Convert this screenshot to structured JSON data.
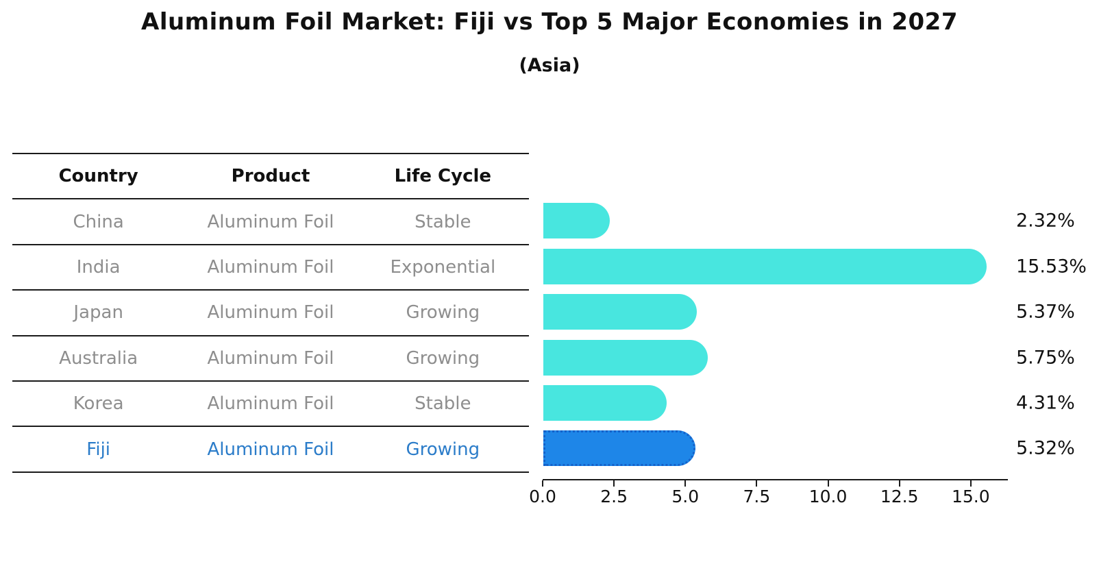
{
  "title": "Aluminum Foil Market: Fiji vs Top 5 Major Economies in 2027",
  "subtitle": "(Asia)",
  "table": {
    "headers": [
      "Country",
      "Product",
      "Life Cycle"
    ],
    "rows": [
      {
        "country": "China",
        "product": "Aluminum Foil",
        "life_cycle": "Stable",
        "highlight": false
      },
      {
        "country": "India",
        "product": "Aluminum Foil",
        "life_cycle": "Exponential",
        "highlight": false
      },
      {
        "country": "Japan",
        "product": "Aluminum Foil",
        "life_cycle": "Growing",
        "highlight": false
      },
      {
        "country": "Australia",
        "product": "Aluminum Foil",
        "life_cycle": "Growing",
        "highlight": false
      },
      {
        "country": "Korea",
        "product": "Aluminum Foil",
        "life_cycle": "Stable",
        "highlight": false
      },
      {
        "country": "Fiji",
        "product": "Aluminum Foil",
        "life_cycle": "Growing",
        "highlight": true
      }
    ]
  },
  "chart_data": {
    "type": "bar",
    "orientation": "horizontal",
    "title": "Aluminum Foil Market: Fiji vs Top 5 Major Economies in 2027",
    "subtitle": "(Asia)",
    "categories": [
      "China",
      "India",
      "Japan",
      "Australia",
      "Korea",
      "Fiji"
    ],
    "values": [
      2.32,
      15.53,
      5.37,
      5.75,
      4.31,
      5.32
    ],
    "value_labels": [
      "2.32%",
      "15.53%",
      "5.37%",
      "5.75%",
      "4.31%",
      "5.32%"
    ],
    "x_ticks": [
      0.0,
      2.5,
      5.0,
      7.5,
      10.0,
      12.5,
      15.0
    ],
    "x_tick_labels": [
      "0.0",
      "2.5",
      "5.0",
      "7.5",
      "10.0",
      "12.5",
      "15.0"
    ],
    "xlim": [
      0,
      16.3
    ],
    "grid": false,
    "legend": false,
    "highlight_index": 5,
    "colors": {
      "bar": "#48E6DF",
      "highlight_bar": "#1E86E8",
      "highlight_border": "#1461C9",
      "highlight_text": "#2B7CC9",
      "row_text": "#8E8E8E",
      "axis": "#1A1A1A",
      "label_text": "#111111"
    }
  }
}
